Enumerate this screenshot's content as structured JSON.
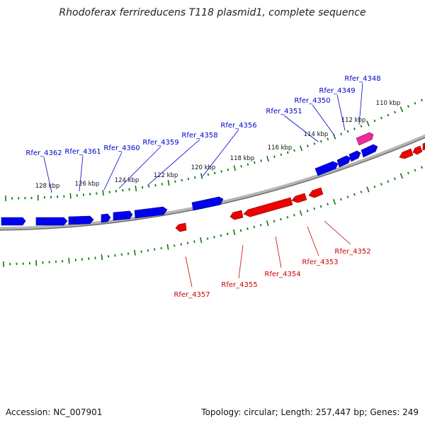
{
  "header": {
    "title": "Rhodoferax ferrireducens T118 plasmid1, complete sequence"
  },
  "footer": {
    "accession": "Accession: NC_007901",
    "summary": "Topology: circular; Length: 257,447 bp; Genes: 249"
  },
  "colors": {
    "backbone": "#8a8a8a",
    "forward_gene": "#0000ee",
    "reverse_gene": "#ee0000",
    "highlight_gene": "#ee2a9a",
    "tick": "#117711",
    "forward_label": "#0000cc",
    "reverse_label": "#cc0000"
  },
  "scale_labels": [
    "128 kbp",
    "126 kbp",
    "124 kbp",
    "122 kbp",
    "120 kbp",
    "118 kbp",
    "116 kbp",
    "114 kbp",
    "112 kbp",
    "110 kbp"
  ],
  "forward_labels": [
    "Rfer_4362",
    "Rfer_4361",
    "Rfer_4360",
    "Rfer_4359",
    "Rfer_4358",
    "Rfer_4356",
    "Rfer_4351",
    "Rfer_4350",
    "Rfer_4349",
    "Rfer_4348"
  ],
  "reverse_labels": [
    "Rfer_4357",
    "Rfer_4355",
    "Rfer_4354",
    "Rfer_4353",
    "Rfer_4352"
  ]
}
